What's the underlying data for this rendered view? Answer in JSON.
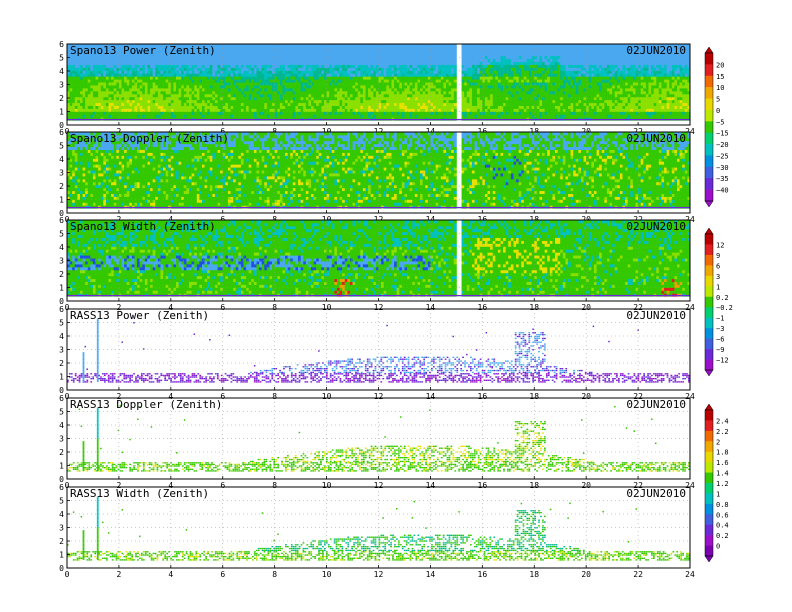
{
  "figure": {
    "date": "02JUN2010"
  },
  "chart_data": [
    {
      "type": "heatmap",
      "title": "Spano13 Power (Zenith)",
      "date": "02JUN2010",
      "xlim": [
        0,
        24
      ],
      "xticks": [
        0,
        2,
        4,
        6,
        8,
        10,
        12,
        14,
        16,
        18,
        20,
        22,
        24
      ],
      "ylim": [
        0,
        6
      ],
      "yticks": [
        0,
        1,
        2,
        3,
        4,
        5,
        6
      ],
      "pattern": "profiler-dense",
      "missing_time": [
        15.0,
        15.2
      ],
      "colorbar": "power"
    },
    {
      "type": "heatmap",
      "title": "Spano13 Doppler (Zenith)",
      "date": "02JUN2010",
      "xlim": [
        0,
        24
      ],
      "xticks": [
        0,
        2,
        4,
        6,
        8,
        10,
        12,
        14,
        16,
        18,
        20,
        22,
        24
      ],
      "ylim": [
        0,
        6
      ],
      "yticks": [
        0,
        1,
        2,
        3,
        4,
        5,
        6
      ],
      "pattern": "profiler-doppler",
      "missing_time": [
        15.0,
        15.2
      ],
      "colorbar": "power"
    },
    {
      "type": "heatmap",
      "title": "Spano13 Width (Zenith)",
      "date": "02JUN2010",
      "xlim": [
        0,
        24
      ],
      "xticks": [
        0,
        2,
        4,
        6,
        8,
        10,
        12,
        14,
        16,
        18,
        20,
        22,
        24
      ],
      "ylim": [
        0,
        6
      ],
      "yticks": [
        0,
        1,
        2,
        3,
        4,
        5,
        6
      ],
      "pattern": "profiler-width",
      "missing_time": [
        15.0,
        15.2
      ],
      "colorbar": "width"
    },
    {
      "type": "heatmap",
      "title": "RASS13 Power (Zenith)",
      "date": "02JUN2010",
      "xlim": [
        0,
        24
      ],
      "xticks": [
        0,
        2,
        4,
        6,
        8,
        10,
        12,
        14,
        16,
        18,
        20,
        22,
        24
      ],
      "ylim": [
        0,
        6
      ],
      "yticks": [
        0,
        1,
        2,
        3,
        4,
        5,
        6
      ],
      "pattern": "rass-power",
      "colorbar": "rasspower"
    },
    {
      "type": "heatmap",
      "title": "RASS13 Doppler (Zenith)",
      "date": "02JUN2010",
      "xlim": [
        0,
        24
      ],
      "xticks": [
        0,
        2,
        4,
        6,
        8,
        10,
        12,
        14,
        16,
        18,
        20,
        22,
        24
      ],
      "ylim": [
        0,
        6
      ],
      "yticks": [
        0,
        1,
        2,
        3,
        4,
        5,
        6
      ],
      "pattern": "rass-doppler",
      "colorbar": "rassdoppler"
    },
    {
      "type": "heatmap",
      "title": "RASS13 Width (Zenith)",
      "date": "02JUN2010",
      "xlim": [
        0,
        24
      ],
      "xticks": [
        0,
        2,
        4,
        6,
        8,
        10,
        12,
        14,
        16,
        18,
        20,
        22,
        24
      ],
      "ylim": [
        0,
        6
      ],
      "yticks": [
        0,
        1,
        2,
        3,
        4,
        5,
        6
      ],
      "pattern": "rass-width",
      "colorbar": "rassdoppler"
    }
  ],
  "colorbars": {
    "power": {
      "labels": [
        "20",
        "15",
        "10",
        "5",
        "0",
        "−5",
        "−15",
        "−20",
        "−25",
        "−30",
        "−35",
        "−40"
      ],
      "colors": [
        "#b80000",
        "#e02020",
        "#f06a00",
        "#f0a800",
        "#e8d800",
        "#bce800",
        "#34c800",
        "#00d070",
        "#00c0c0",
        "#0090e0",
        "#4060e0",
        "#6a2ad8",
        "#9a10c8"
      ]
    },
    "width": {
      "labels": [
        "12",
        "9",
        "6",
        "3",
        "1",
        "0.2",
        "−0.2",
        "−1",
        "−3",
        "−6",
        "−9",
        "−12"
      ],
      "colors": [
        "#b80000",
        "#e02020",
        "#f06a00",
        "#f0a800",
        "#e8d800",
        "#bce800",
        "#34c800",
        "#00d070",
        "#00c0c0",
        "#0090e0",
        "#4060e0",
        "#6a2ad8",
        "#9a10c8"
      ]
    },
    "rassdoppler": {
      "labels": [
        "2.4",
        "2.2",
        "2",
        "1.8",
        "1.6",
        "1.4",
        "1.2",
        "1",
        "0.8",
        "0.6",
        "0.4",
        "0.2",
        "0"
      ],
      "colors": [
        "#b80000",
        "#e02020",
        "#f06a00",
        "#f0a800",
        "#e8d800",
        "#bce800",
        "#34c800",
        "#00d070",
        "#00c0c0",
        "#0090e0",
        "#4060e0",
        "#6a2ad8",
        "#9a10c8",
        "#7a00b0"
      ]
    }
  }
}
